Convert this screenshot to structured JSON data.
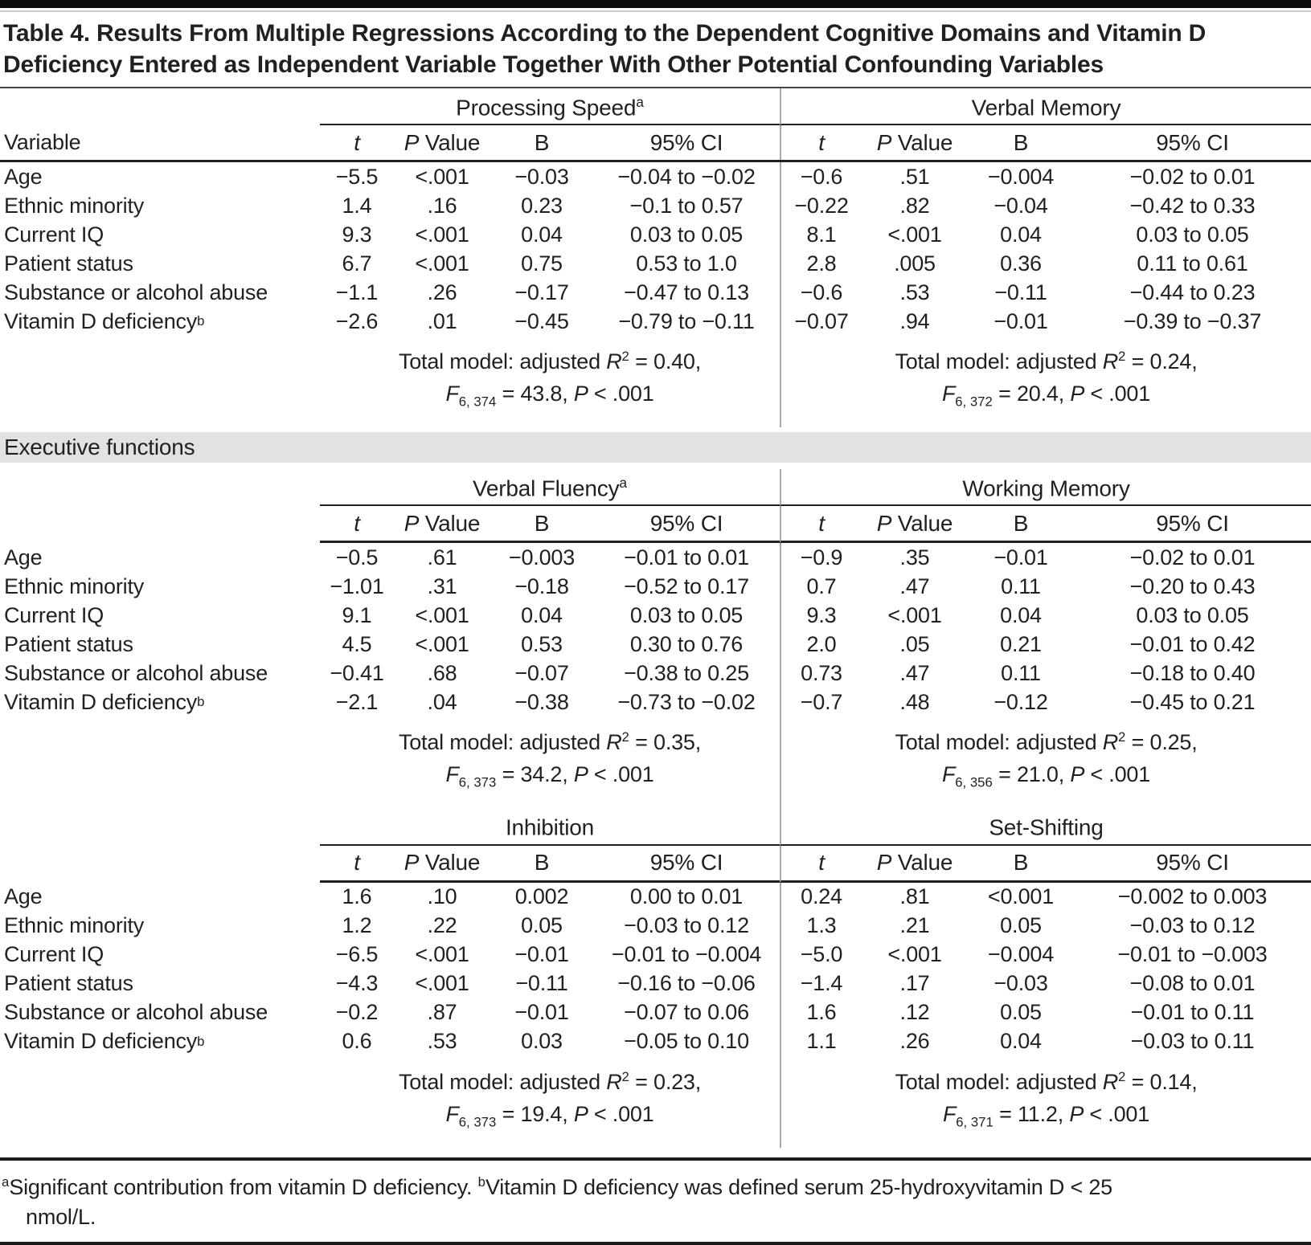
{
  "colors": {
    "text": "#231f20",
    "rule_dark": "#231f20",
    "top_bar": "#0d0d0d",
    "section_band_bg": "#e2e2e2",
    "panel_divider": "#a9a9a9"
  },
  "title": "Table 4. Results From Multiple Regressions According to the Dependent Cognitive Domains and Vitamin D Deficiency Entered as Independent Variable Together With Other Potential Confounding Variables",
  "col_headers": {
    "variable": "Variable",
    "t": "t",
    "p_italic": "P",
    "p_rest": " Value",
    "b": "B",
    "ci": "95% CI"
  },
  "section_header": "Executive functions",
  "variables": [
    {
      "label": "Age",
      "sup": ""
    },
    {
      "label": "Ethnic minority",
      "sup": ""
    },
    {
      "label": "Current IQ",
      "sup": ""
    },
    {
      "label": "Patient status",
      "sup": ""
    },
    {
      "label": "Substance or alcohol abuse",
      "sup": ""
    },
    {
      "label": "Vitamin D deficiency",
      "sup": "b"
    }
  ],
  "panels": [
    {
      "name": "Processing Speed",
      "sup": "a",
      "rows": [
        {
          "t": "−5.5",
          "p": "<.001",
          "b": "−0.03",
          "ci": "−0.04 to −0.02"
        },
        {
          "t": "1.4",
          "p": ".16",
          "b": "0.23",
          "ci": "−0.1 to 0.57"
        },
        {
          "t": "9.3",
          "p": "<.001",
          "b": "0.04",
          "ci": "0.03 to 0.05"
        },
        {
          "t": "6.7",
          "p": "<.001",
          "b": "0.75",
          "ci": "0.53 to 1.0"
        },
        {
          "t": "−1.1",
          "p": ".26",
          "b": "−0.17",
          "ci": "−0.47 to 0.13"
        },
        {
          "t": "−2.6",
          "p": ".01",
          "b": "−0.45",
          "ci": "−0.79 to −0.11"
        }
      ],
      "total": {
        "pre": "Total model: adjusted ",
        "r": "R",
        "r_sup": "2",
        "r_rest": " = 0.40,",
        "f": "F",
        "f_sub": "6, 374",
        "f_rest": " = 43.8, ",
        "p": "P",
        "p_rest": " < .001"
      }
    },
    {
      "name": "Verbal Memory",
      "sup": "",
      "rows": [
        {
          "t": "−0.6",
          "p": ".51",
          "b": "−0.004",
          "ci": "−0.02 to 0.01"
        },
        {
          "t": "−0.22",
          "p": ".82",
          "b": "−0.04",
          "ci": "−0.42 to 0.33"
        },
        {
          "t": "8.1",
          "p": "<.001",
          "b": "0.04",
          "ci": "0.03 to 0.05"
        },
        {
          "t": "2.8",
          "p": ".005",
          "b": "0.36",
          "ci": "0.11 to 0.61"
        },
        {
          "t": "−0.6",
          "p": ".53",
          "b": "−0.11",
          "ci": "−0.44 to 0.23"
        },
        {
          "t": "−0.07",
          "p": ".94",
          "b": "−0.01",
          "ci": "−0.39 to −0.37"
        }
      ],
      "total": {
        "pre": "Total model: adjusted ",
        "r": "R",
        "r_sup": "2",
        "r_rest": " = 0.24,",
        "f": "F",
        "f_sub": "6, 372",
        "f_rest": " = 20.4, ",
        "p": "P",
        "p_rest": " < .001"
      }
    },
    {
      "name": "Verbal Fluency",
      "sup": "a",
      "rows": [
        {
          "t": "−0.5",
          "p": ".61",
          "b": "−0.003",
          "ci": "−0.01 to 0.01"
        },
        {
          "t": "−1.01",
          "p": ".31",
          "b": "−0.18",
          "ci": "−0.52 to 0.17"
        },
        {
          "t": "9.1",
          "p": "<.001",
          "b": "0.04",
          "ci": "0.03 to 0.05"
        },
        {
          "t": "4.5",
          "p": "<.001",
          "b": "0.53",
          "ci": "0.30 to 0.76"
        },
        {
          "t": "−0.41",
          "p": ".68",
          "b": "−0.07",
          "ci": "−0.38 to 0.25"
        },
        {
          "t": "−2.1",
          "p": ".04",
          "b": "−0.38",
          "ci": "−0.73 to −0.02"
        }
      ],
      "total": {
        "pre": "Total model: adjusted ",
        "r": "R",
        "r_sup": "2",
        "r_rest": " = 0.35,",
        "f": "F",
        "f_sub": "6, 373",
        "f_rest": " = 34.2, ",
        "p": "P",
        "p_rest": " < .001"
      }
    },
    {
      "name": "Working Memory",
      "sup": "",
      "rows": [
        {
          "t": "−0.9",
          "p": ".35",
          "b": "−0.01",
          "ci": "−0.02 to 0.01"
        },
        {
          "t": "0.7",
          "p": ".47",
          "b": "0.11",
          "ci": "−0.20 to 0.43"
        },
        {
          "t": "9.3",
          "p": "<.001",
          "b": "0.04",
          "ci": "0.03 to 0.05"
        },
        {
          "t": "2.0",
          "p": ".05",
          "b": "0.21",
          "ci": "−0.01 to 0.42"
        },
        {
          "t": "0.73",
          "p": ".47",
          "b": "0.11",
          "ci": "−0.18 to 0.40"
        },
        {
          "t": "−0.7",
          "p": ".48",
          "b": "−0.12",
          "ci": "−0.45 to 0.21"
        }
      ],
      "total": {
        "pre": "Total model: adjusted ",
        "r": "R",
        "r_sup": "2",
        "r_rest": " = 0.25,",
        "f": "F",
        "f_sub": "6, 356",
        "f_rest": " = 21.0, ",
        "p": "P",
        "p_rest": " < .001"
      }
    },
    {
      "name": "Inhibition",
      "sup": "",
      "rows": [
        {
          "t": "1.6",
          "p": ".10",
          "b": "0.002",
          "ci": "0.00 to 0.01"
        },
        {
          "t": "1.2",
          "p": ".22",
          "b": "0.05",
          "ci": "−0.03 to 0.12"
        },
        {
          "t": "−6.5",
          "p": "<.001",
          "b": "−0.01",
          "ci": "−0.01 to −0.004"
        },
        {
          "t": "−4.3",
          "p": "<.001",
          "b": "−0.11",
          "ci": "−0.16 to −0.06"
        },
        {
          "t": "−0.2",
          "p": ".87",
          "b": "−0.01",
          "ci": "−0.07 to 0.06"
        },
        {
          "t": "0.6",
          "p": ".53",
          "b": "0.03",
          "ci": "−0.05 to 0.10"
        }
      ],
      "total": {
        "pre": "Total model: adjusted ",
        "r": "R",
        "r_sup": "2",
        "r_rest": " = 0.23,",
        "f": "F",
        "f_sub": "6, 373",
        "f_rest": " = 19.4, ",
        "p": "P",
        "p_rest": " < .001"
      }
    },
    {
      "name": "Set-Shifting",
      "sup": "",
      "rows": [
        {
          "t": "0.24",
          "p": ".81",
          "b": "<0.001",
          "ci": "−0.002 to 0.003"
        },
        {
          "t": "1.3",
          "p": ".21",
          "b": "0.05",
          "ci": "−0.03 to 0.12"
        },
        {
          "t": "−5.0",
          "p": "<.001",
          "b": "−0.004",
          "ci": "−0.01 to −0.003"
        },
        {
          "t": "−1.4",
          "p": ".17",
          "b": "−0.03",
          "ci": "−0.08 to 0.01"
        },
        {
          "t": "1.6",
          "p": ".12",
          "b": "0.05",
          "ci": "−0.01 to 0.11"
        },
        {
          "t": "1.1",
          "p": ".26",
          "b": "0.04",
          "ci": "−0.03 to 0.11"
        }
      ],
      "total": {
        "pre": "Total model: adjusted ",
        "r": "R",
        "r_sup": "2",
        "r_rest": " = 0.14,",
        "f": "F",
        "f_sub": "6, 371",
        "f_rest": " = 11.2, ",
        "p": "P",
        "p_rest": " < .001"
      }
    }
  ],
  "footnotes": {
    "a_sup": "a",
    "a_text": "Significant contribution from vitamin D deficiency.  ",
    "b_sup": "b",
    "b_text": "Vitamin D deficiency was defined serum 25-hydroxyvitamin D < 25",
    "b_text2": "nmol/L."
  }
}
